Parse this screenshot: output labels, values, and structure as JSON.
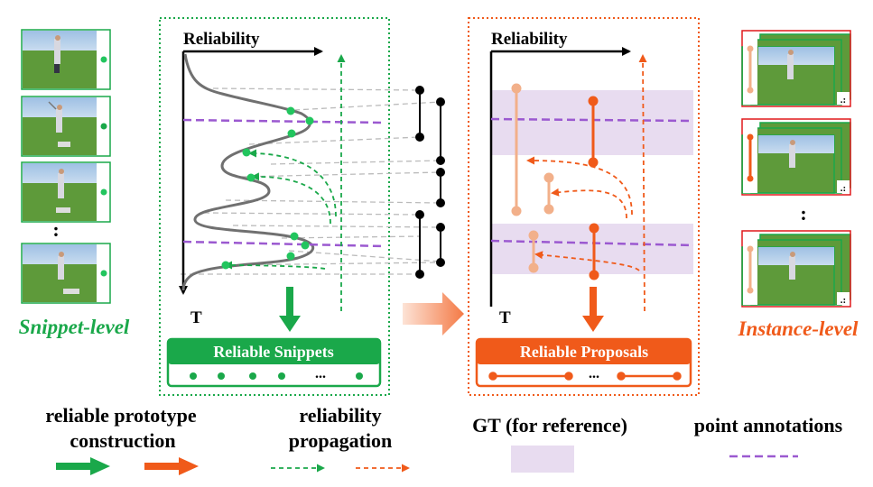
{
  "left_panel": {
    "axis_x_label": "Reliability",
    "axis_y_label": "T",
    "box_title": "Reliable Snippets",
    "box_dots_label": "..."
  },
  "right_panel": {
    "axis_x_label": "Reliability",
    "axis_y_label": "T",
    "box_title": "Reliable Proposals",
    "box_dots_label": "..."
  },
  "side_labels": {
    "snippet_level": "Snippet-level",
    "instance_level": "Instance-level",
    "snippet_ellipsis": ":",
    "instance_ellipsis": ":"
  },
  "legend": {
    "prototype_line1": "reliable prototype",
    "prototype_line2": "construction",
    "propagation_line1": "reliability",
    "propagation_line2": "propagation",
    "gt_label": "GT (for reference)",
    "point_label": "point annotations"
  },
  "colors": {
    "green": "#1aa84a",
    "green_dot": "#22c55e",
    "orange": "#f05a1a",
    "light_orange": "#f2b08a",
    "purple": "#9b59d0",
    "gt_fill": "#e8dcf0",
    "gray_line": "#bbbbbb",
    "curve": "#707070",
    "thumb_sky": "#8fb3d9",
    "thumb_grass": "#5e9a3a"
  }
}
